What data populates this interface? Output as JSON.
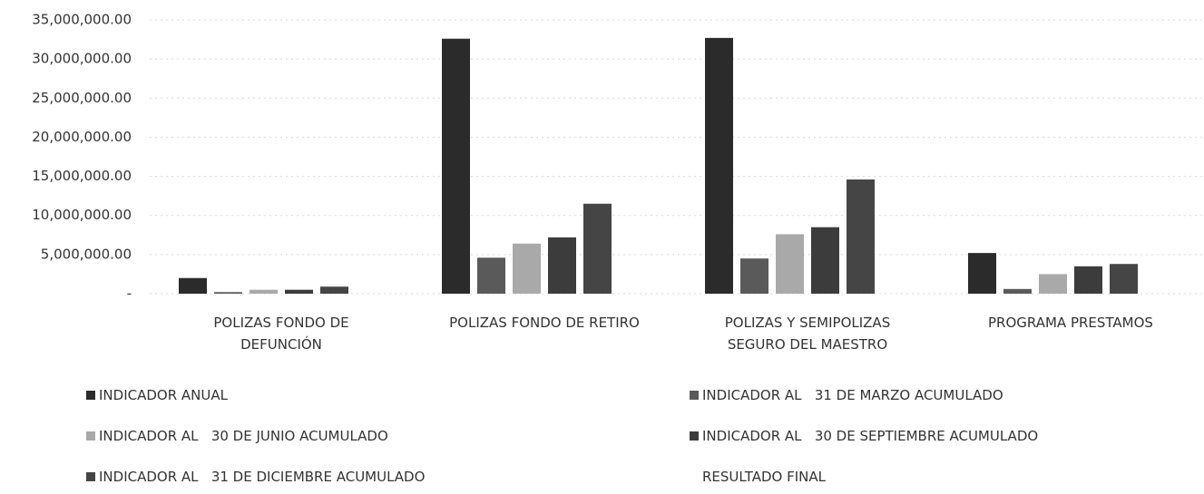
{
  "chart_data": {
    "type": "bar",
    "categories": [
      "POLIZAS FONDO DE DEFUNCIÓN",
      "POLIZAS FONDO DE RETIRO",
      "POLIZAS Y SEMIPOLIZAS SEGURO DEL MAESTRO",
      "PROGRAMA PRESTAMOS"
    ],
    "series": [
      {
        "name": "INDICADOR ANUAL",
        "color": "#2b2b2b",
        "values": [
          2000000,
          32600000,
          32700000,
          5200000
        ]
      },
      {
        "name": "INDICADOR AL   31 DE MARZO ACUMULADO",
        "color": "#5a5a5a",
        "values": [
          200000,
          4600000,
          4500000,
          600000
        ]
      },
      {
        "name": "INDICADOR AL   30 DE JUNIO ACUMULADO",
        "color": "#a9a9a9",
        "values": [
          500000,
          6400000,
          7600000,
          2500000
        ]
      },
      {
        "name": "INDICADOR AL   30 DE SEPTIEMBRE ACUMULADO",
        "color": "#3c3c3c",
        "values": [
          500000,
          7200000,
          8500000,
          3500000
        ]
      },
      {
        "name": "INDICADOR AL   31 DE DICIEMBRE ACUMULADO",
        "color": "#454545",
        "values": [
          900000,
          11500000,
          14600000,
          3800000
        ]
      },
      {
        "name": "RESULTADO FINAL",
        "color": "#ffffff",
        "values": [
          null,
          null,
          null,
          null
        ]
      }
    ],
    "ylim": [
      0,
      35000000
    ],
    "yticks": [
      {
        "value": 0,
        "label": "-"
      },
      {
        "value": 5000000,
        "label": "5,000,000.00"
      },
      {
        "value": 10000000,
        "label": "10,000,000.00"
      },
      {
        "value": 15000000,
        "label": "15,000,000.00"
      },
      {
        "value": 20000000,
        "label": "20,000,000.00"
      },
      {
        "value": 25000000,
        "label": "25,000,000.00"
      },
      {
        "value": 30000000,
        "label": "30,000,000.00"
      },
      {
        "value": 35000000,
        "label": "35,000,000.00"
      }
    ],
    "grid": true
  }
}
